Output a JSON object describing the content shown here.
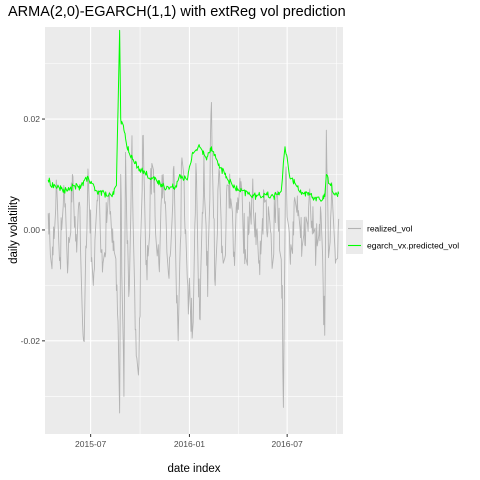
{
  "chart_data": {
    "type": "line",
    "title": "ARMA(2,0)-EGARCH(1,1) with extReg vol prediction",
    "xlabel": "date index",
    "ylabel": "daily volatility",
    "x_range": [
      "2015-04-07",
      "2016-10-13"
    ],
    "ylim": [
      -0.0368,
      0.0366
    ],
    "x_ticks": [
      {
        "date": "2015-07-01",
        "label": "2015-07"
      },
      {
        "date": "2016-01-01",
        "label": "2016-01"
      },
      {
        "date": "2016-07-01",
        "label": "2016-07"
      }
    ],
    "y_ticks": [
      {
        "value": 0.02,
        "label": "0.02"
      },
      {
        "value": 0.0,
        "label": "0.00"
      },
      {
        "value": -0.02,
        "label": "-0.02"
      }
    ],
    "x_minor_ticks": [
      "2015-04-01",
      "2015-10-01",
      "2016-04-01",
      "2016-10-01"
    ],
    "y_minor_ticks": [
      0.03,
      0.01,
      -0.01,
      -0.03
    ],
    "grid": true,
    "legend_position": "right",
    "start_date": "2015-04-13",
    "end_date": "2016-10-05",
    "colors": {
      "realized_vol": "#b3b3b3",
      "egarch_vx.predicted_vol": "#00ff00",
      "panel": "#ebebeb",
      "grid": "#ffffff"
    },
    "series": [
      {
        "name": "realized_vol",
        "anchors": [
          [
            "2015-04-13",
            0.003
          ],
          [
            "2015-04-20",
            -0.007
          ],
          [
            "2015-04-28",
            0.009
          ],
          [
            "2015-05-05",
            -0.005
          ],
          [
            "2015-05-12",
            0.008
          ],
          [
            "2015-05-20",
            -0.006
          ],
          [
            "2015-05-28",
            0.01
          ],
          [
            "2015-06-05",
            -0.004
          ],
          [
            "2015-06-10",
            0.005
          ],
          [
            "2015-06-18",
            -0.02
          ],
          [
            "2015-06-26",
            0.011
          ],
          [
            "2015-07-06",
            -0.01
          ],
          [
            "2015-07-15",
            0.007
          ],
          [
            "2015-07-24",
            -0.006
          ],
          [
            "2015-08-04",
            0.006
          ],
          [
            "2015-08-14",
            -0.004
          ],
          [
            "2015-08-20",
            -0.015
          ],
          [
            "2015-08-24",
            -0.033
          ],
          [
            "2015-08-26",
            0.01
          ],
          [
            "2015-08-28",
            -0.008
          ],
          [
            "2015-09-01",
            -0.03
          ],
          [
            "2015-09-04",
            0.014
          ],
          [
            "2015-09-10",
            -0.012
          ],
          [
            "2015-09-16",
            0.017
          ],
          [
            "2015-09-22",
            -0.018
          ],
          [
            "2015-09-29",
            -0.024
          ],
          [
            "2015-10-06",
            0.017
          ],
          [
            "2015-10-14",
            -0.009
          ],
          [
            "2015-10-23",
            0.012
          ],
          [
            "2015-11-05",
            -0.006
          ],
          [
            "2015-11-13",
            0.01
          ],
          [
            "2015-11-23",
            -0.008
          ],
          [
            "2015-12-02",
            0.011
          ],
          [
            "2015-12-11",
            -0.02
          ],
          [
            "2015-12-18",
            0.013
          ],
          [
            "2015-12-29",
            -0.01
          ],
          [
            "2016-01-07",
            -0.018
          ],
          [
            "2016-01-13",
            0.012
          ],
          [
            "2016-01-20",
            -0.016
          ],
          [
            "2016-01-28",
            0.014
          ],
          [
            "2016-02-04",
            -0.012
          ],
          [
            "2016-02-11",
            0.023
          ],
          [
            "2016-02-18",
            -0.01
          ],
          [
            "2016-02-25",
            0.011
          ],
          [
            "2016-03-04",
            -0.006
          ],
          [
            "2016-03-14",
            0.008
          ],
          [
            "2016-03-24",
            -0.004
          ],
          [
            "2016-04-05",
            0.007
          ],
          [
            "2016-04-15",
            -0.005
          ],
          [
            "2016-04-27",
            0.006
          ],
          [
            "2016-05-09",
            -0.006
          ],
          [
            "2016-05-20",
            0.005
          ],
          [
            "2016-06-02",
            -0.004
          ],
          [
            "2016-06-13",
            0.007
          ],
          [
            "2016-06-22",
            -0.01
          ],
          [
            "2016-06-24",
            -0.032
          ],
          [
            "2016-06-28",
            0.01
          ],
          [
            "2016-07-06",
            -0.004
          ],
          [
            "2016-07-18",
            0.004
          ],
          [
            "2016-07-29",
            -0.003
          ],
          [
            "2016-08-10",
            0.004
          ],
          [
            "2016-08-24",
            -0.003
          ],
          [
            "2016-09-02",
            0.003
          ],
          [
            "2016-09-09",
            -0.019
          ],
          [
            "2016-09-12",
            0.018
          ],
          [
            "2016-09-16",
            -0.005
          ],
          [
            "2016-09-23",
            0.006
          ],
          [
            "2016-09-29",
            -0.006
          ],
          [
            "2016-10-05",
            0.002
          ]
        ]
      },
      {
        "name": "egarch_vx.predicted_vol",
        "anchors": [
          [
            "2015-04-13",
            0.009
          ],
          [
            "2015-04-22",
            0.008
          ],
          [
            "2015-05-04",
            0.0075
          ],
          [
            "2015-05-18",
            0.007
          ],
          [
            "2015-06-01",
            0.008
          ],
          [
            "2015-06-12",
            0.0075
          ],
          [
            "2015-06-22",
            0.0095
          ],
          [
            "2015-07-01",
            0.0085
          ],
          [
            "2015-07-13",
            0.007
          ],
          [
            "2015-07-27",
            0.0065
          ],
          [
            "2015-08-10",
            0.006
          ],
          [
            "2015-08-18",
            0.008
          ],
          [
            "2015-08-24",
            0.036
          ],
          [
            "2015-08-26",
            0.02
          ],
          [
            "2015-09-01",
            0.018
          ],
          [
            "2015-09-10",
            0.014
          ],
          [
            "2015-09-22",
            0.012
          ],
          [
            "2015-10-01",
            0.011
          ],
          [
            "2015-10-14",
            0.01
          ],
          [
            "2015-10-28",
            0.009
          ],
          [
            "2015-11-12",
            0.008
          ],
          [
            "2015-11-25",
            0.0075
          ],
          [
            "2015-12-07",
            0.008
          ],
          [
            "2015-12-14",
            0.01
          ],
          [
            "2015-12-28",
            0.009
          ],
          [
            "2016-01-07",
            0.014
          ],
          [
            "2016-01-20",
            0.015
          ],
          [
            "2016-02-01",
            0.013
          ],
          [
            "2016-02-11",
            0.015
          ],
          [
            "2016-02-23",
            0.012
          ],
          [
            "2016-03-07",
            0.01
          ],
          [
            "2016-03-21",
            0.008
          ],
          [
            "2016-04-04",
            0.007
          ],
          [
            "2016-04-20",
            0.0065
          ],
          [
            "2016-05-05",
            0.006
          ],
          [
            "2016-05-20",
            0.0065
          ],
          [
            "2016-06-06",
            0.006
          ],
          [
            "2016-06-20",
            0.007
          ],
          [
            "2016-06-27",
            0.015
          ],
          [
            "2016-07-05",
            0.01
          ],
          [
            "2016-07-18",
            0.008
          ],
          [
            "2016-08-01",
            0.0065
          ],
          [
            "2016-08-16",
            0.006
          ],
          [
            "2016-08-31",
            0.0055
          ],
          [
            "2016-09-09",
            0.006
          ],
          [
            "2016-09-12",
            0.01
          ],
          [
            "2016-09-20",
            0.008
          ],
          [
            "2016-09-29",
            0.0065
          ],
          [
            "2016-10-05",
            0.0065
          ]
        ]
      }
    ]
  }
}
